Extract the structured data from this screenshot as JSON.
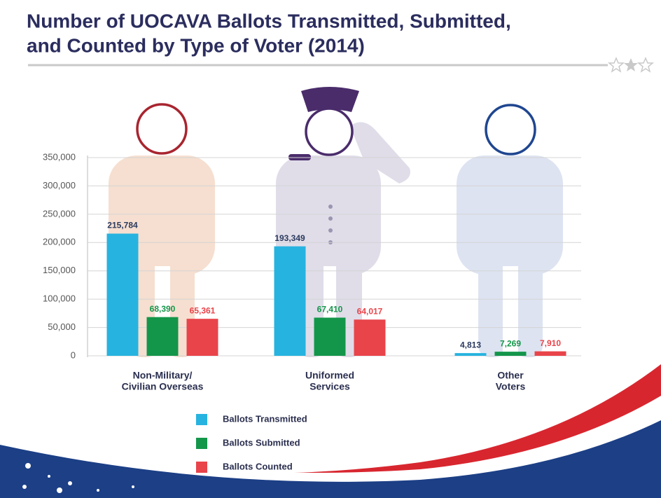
{
  "chart_data": {
    "type": "bar",
    "title": [
      "Number of UOCAVA Ballots Transmitted, Submitted,",
      "and Counted by Type of Voter (2014)"
    ],
    "categories": [
      [
        "Non-Military/",
        "Civilian Overseas"
      ],
      [
        "Uniformed",
        "Services"
      ],
      [
        "Other",
        "Voters"
      ]
    ],
    "series": [
      {
        "name": "Ballots Transmitted",
        "color": "#27b3df",
        "label_color": "#2b3a5e",
        "values": [
          215784,
          193349,
          4813
        ],
        "value_labels": [
          "215,784",
          "193,349",
          "4,813"
        ]
      },
      {
        "name": "Ballots Submitted",
        "color": "#14964a",
        "label_color": "#14964a",
        "values": [
          68390,
          67410,
          7269
        ],
        "value_labels": [
          "68,390",
          "67,410",
          "7,269"
        ]
      },
      {
        "name": "Ballots Counted",
        "color": "#e8444a",
        "label_color": "#e8444a",
        "values": [
          65361,
          64017,
          7910
        ],
        "value_labels": [
          "65,361",
          "64,017",
          "7,910"
        ]
      }
    ],
    "ylim": [
      0,
      350000
    ],
    "yticks": [
      0,
      {
        "value": 50000,
        "label": "50,000"
      },
      {
        "value": 100000,
        "label": "100,000"
      },
      {
        "value": 150000,
        "label": "150,000"
      },
      {
        "value": 200000,
        "label": "200,000"
      },
      {
        "value": 250000,
        "label": "250,000"
      },
      {
        "value": 300000,
        "label": "300,000"
      },
      {
        "value": 350000,
        "label": "350,000"
      }
    ],
    "grid": true
  }
}
